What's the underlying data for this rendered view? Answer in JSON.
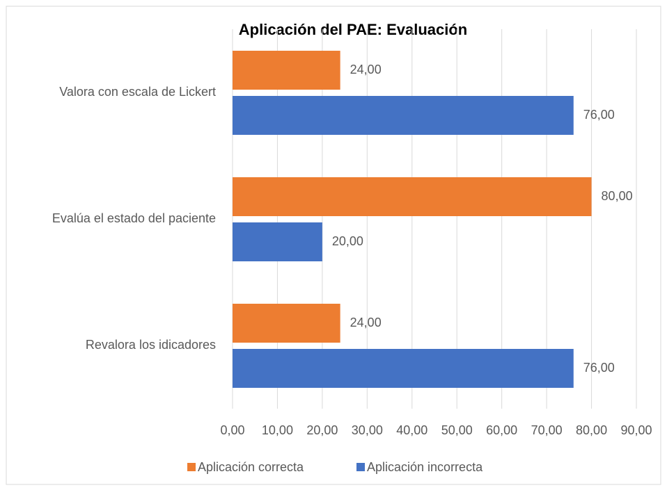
{
  "chart_data": {
    "type": "hbar",
    "title": "Aplicación del PAE: Evaluación",
    "categories": [
      "Valora con escala de Lickert",
      "Evalúa el estado del paciente",
      "Revalora los idicadores"
    ],
    "series": [
      {
        "name": "Aplicación correcta",
        "color": "#ed7d31",
        "values": [
          24,
          80,
          24
        ],
        "value_labels": [
          "24,00",
          "80,00",
          "24,00"
        ]
      },
      {
        "name": "Aplicación incorrecta",
        "color": "#4472c4",
        "values": [
          76,
          20,
          76
        ],
        "value_labels": [
          "76,00",
          "20,00",
          "76,00"
        ]
      }
    ],
    "xlim": [
      0,
      90
    ],
    "xticks": [
      {
        "value": 0,
        "label": "0,00"
      },
      {
        "value": 10,
        "label": "10,00"
      },
      {
        "value": 20,
        "label": "20,00"
      },
      {
        "value": 30,
        "label": "30,00"
      },
      {
        "value": 40,
        "label": "40,00"
      },
      {
        "value": 50,
        "label": "50,00"
      },
      {
        "value": 60,
        "label": "60,00"
      },
      {
        "value": 70,
        "label": "70,00"
      },
      {
        "value": 80,
        "label": "80,00"
      },
      {
        "value": 90,
        "label": "90,00"
      }
    ],
    "grid": true,
    "legend": "bottom"
  }
}
